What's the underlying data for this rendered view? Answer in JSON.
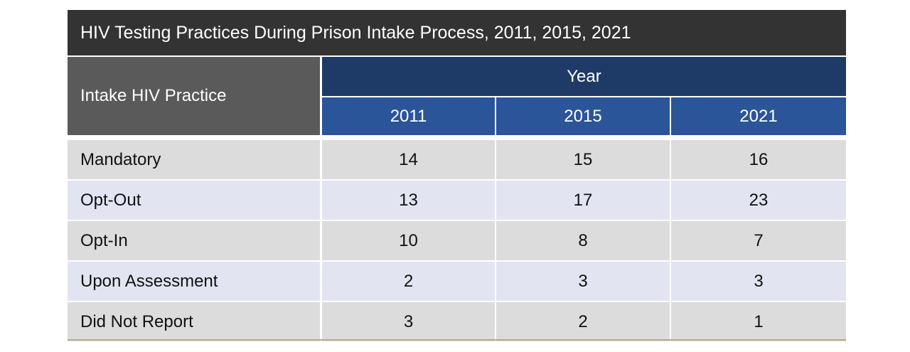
{
  "chart_data": {
    "type": "table",
    "title": "HIV Testing Practices During Prison Intake Process, 2011, 2015, 2021",
    "row_header_label": "Intake HIV Practice",
    "column_group_label": "Year",
    "columns": [
      "2011",
      "2015",
      "2021"
    ],
    "rows": [
      {
        "label": "Mandatory",
        "values": [
          "14",
          "15",
          "16"
        ]
      },
      {
        "label": "Opt-Out",
        "values": [
          "13",
          "17",
          "23"
        ]
      },
      {
        "label": "Opt-In",
        "values": [
          "10",
          "8",
          "7"
        ]
      },
      {
        "label": "Upon Assessment",
        "values": [
          "2",
          "3",
          "3"
        ]
      },
      {
        "label": "Did Not Report",
        "values": [
          "3",
          "2",
          "1"
        ]
      }
    ]
  },
  "colors": {
    "title_bg": "#333333",
    "practice_header_bg": "#5a5a5a",
    "year_header_bg": "#1e3a66",
    "column_header_bg": "#2a5599",
    "row_odd_bg": "#dcdcdc",
    "row_even_bg": "#e2e5f1"
  }
}
